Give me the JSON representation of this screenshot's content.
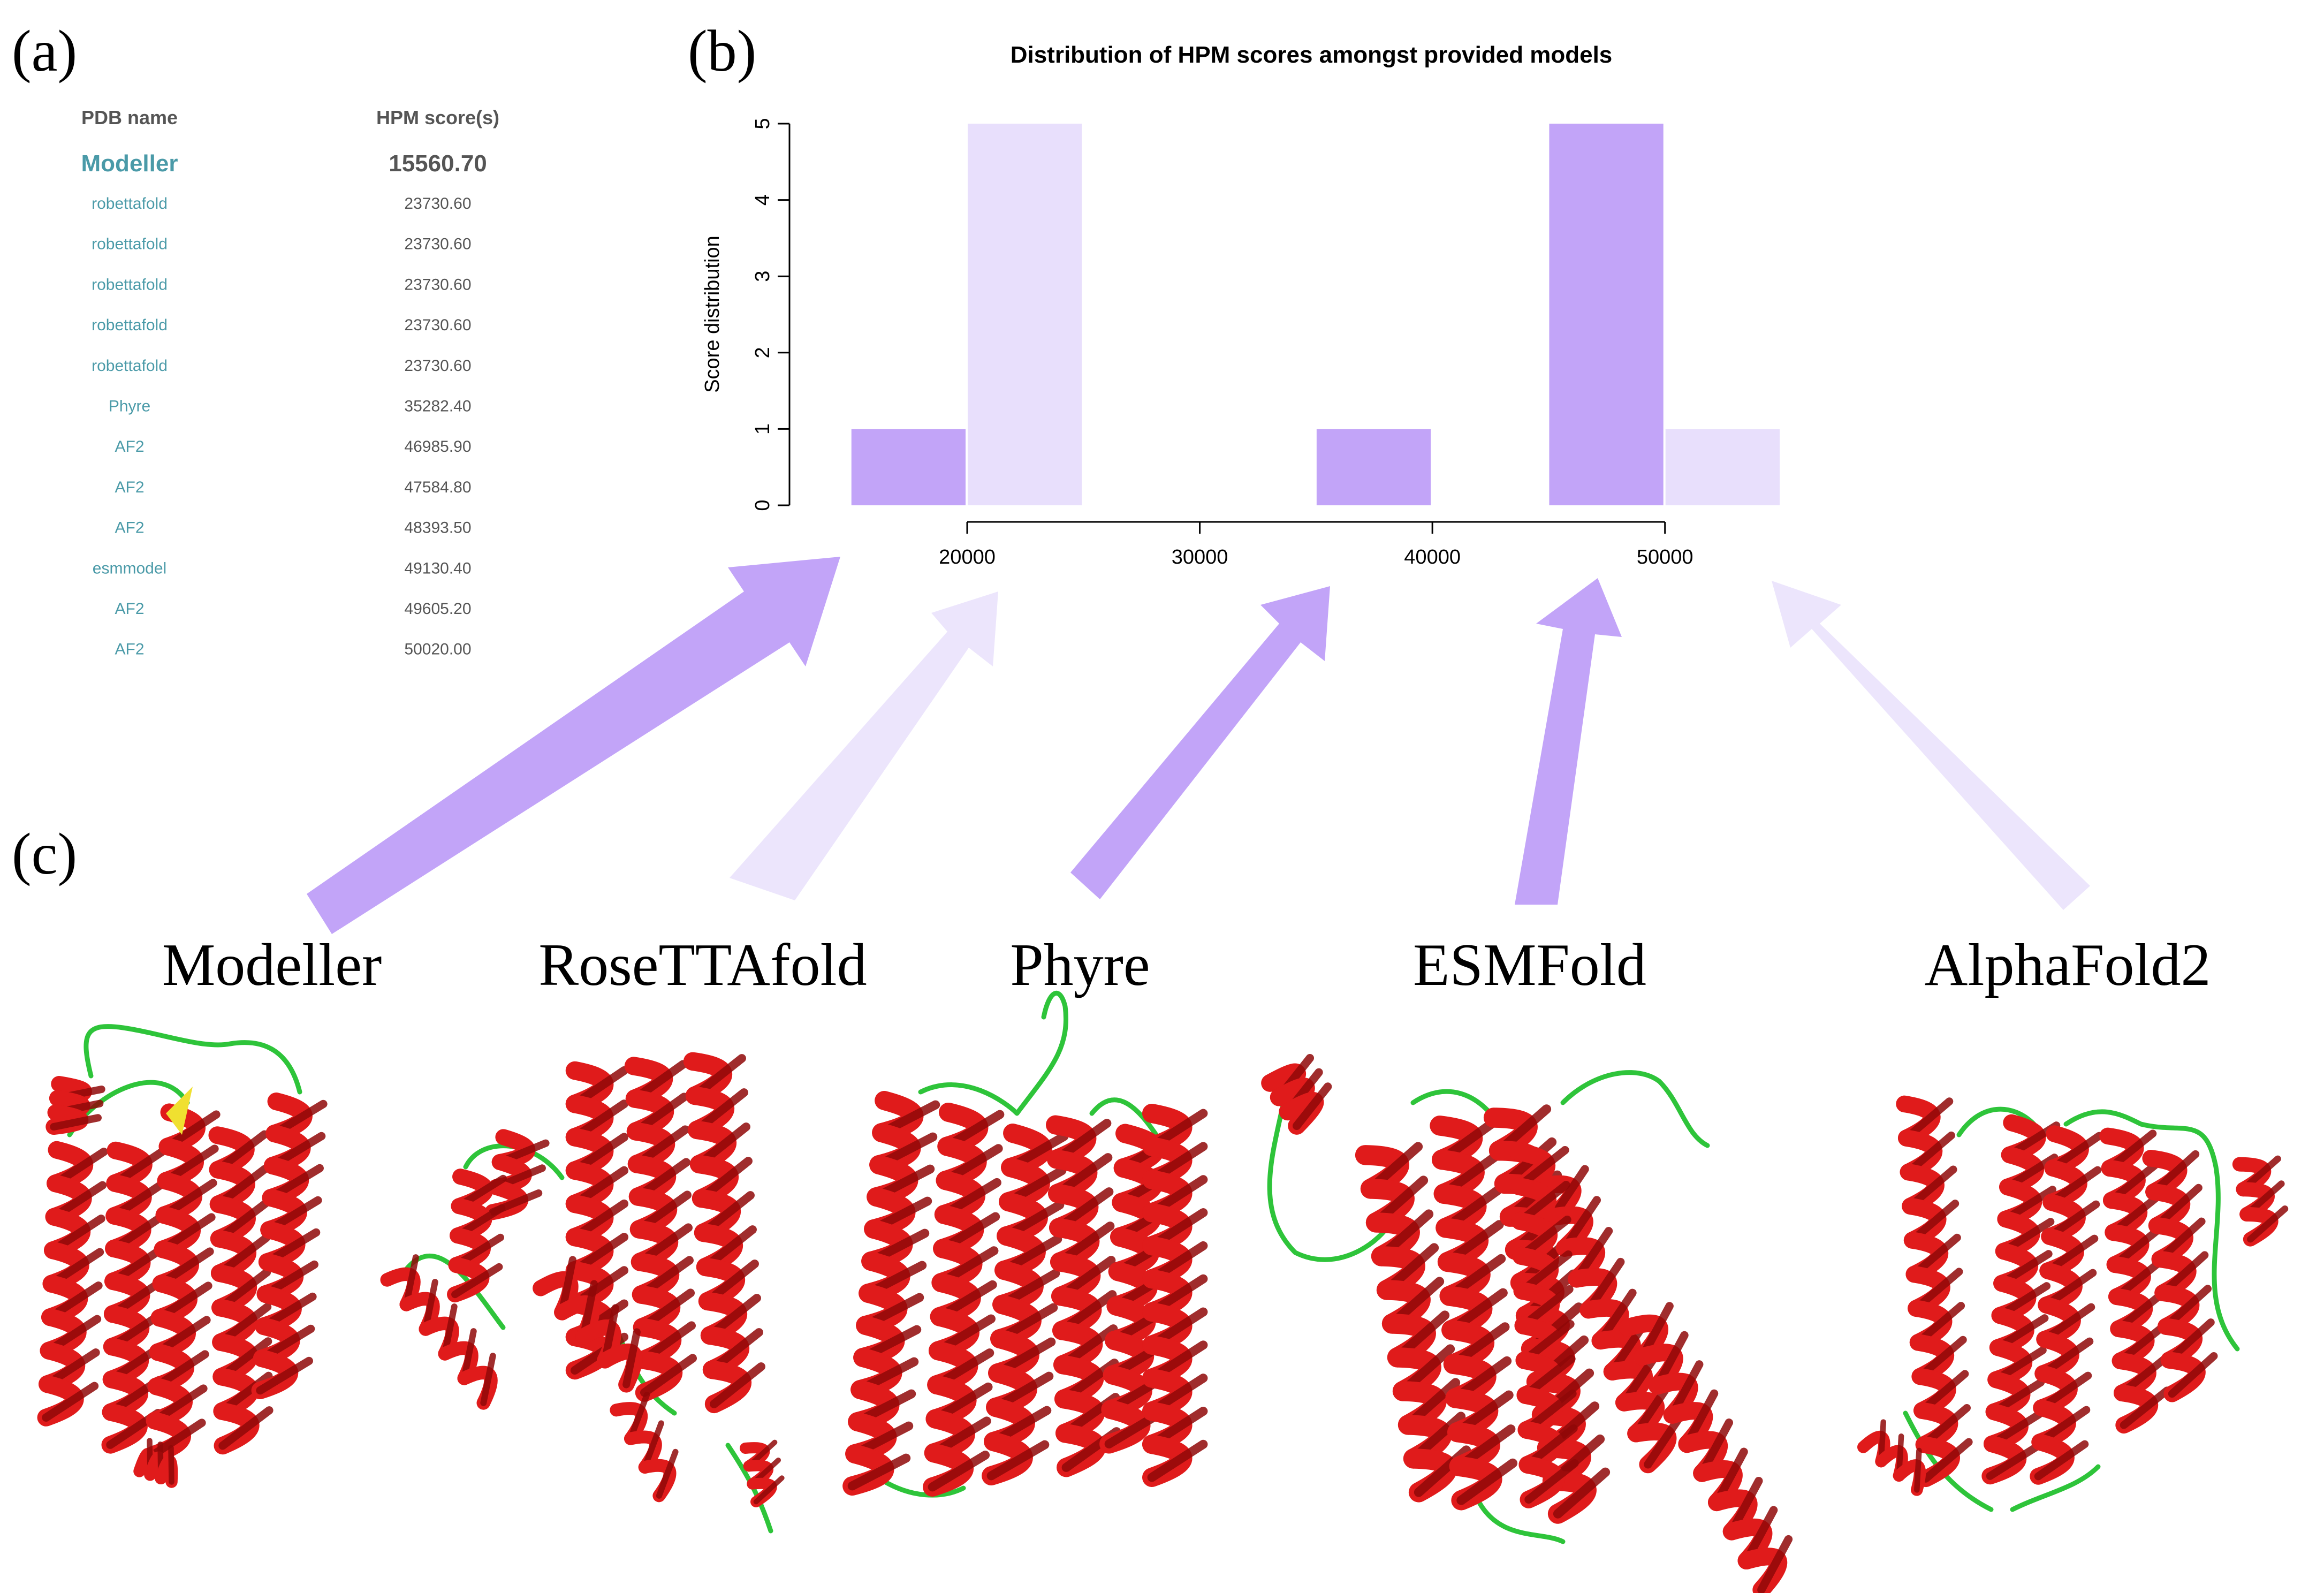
{
  "panels": {
    "a": "(a)",
    "b": "(b)",
    "c": "(c)"
  },
  "table": {
    "headers": [
      "PDB name",
      "HPM score(s)"
    ],
    "rows": [
      {
        "name": "Modeller",
        "score": "15560.70",
        "highlight": true
      },
      {
        "name": "robettafold",
        "score": "23730.60"
      },
      {
        "name": "robettafold",
        "score": "23730.60"
      },
      {
        "name": "robettafold",
        "score": "23730.60"
      },
      {
        "name": "robettafold",
        "score": "23730.60"
      },
      {
        "name": "robettafold",
        "score": "23730.60"
      },
      {
        "name": "Phyre",
        "score": "35282.40"
      },
      {
        "name": "AF2",
        "score": "46985.90"
      },
      {
        "name": "AF2",
        "score": "47584.80"
      },
      {
        "name": "AF2",
        "score": "48393.50"
      },
      {
        "name": "esmmodel",
        "score": "49130.40"
      },
      {
        "name": "AF2",
        "score": "49605.20"
      },
      {
        "name": "AF2",
        "score": "50020.00"
      }
    ]
  },
  "chart_data": {
    "type": "bar",
    "title": "Distribution of HPM scores amongst provided models",
    "xlabel": "",
    "ylabel": "Score distribution",
    "xlim": [
      14500,
      55000
    ],
    "ylim": [
      0,
      5
    ],
    "x_ticks": [
      20000,
      30000,
      40000,
      50000
    ],
    "x_tick_labels": [
      "20000",
      "30000",
      "40000",
      "50000"
    ],
    "y_ticks": [
      0,
      1,
      2,
      3,
      4,
      5
    ],
    "y_tick_labels": [
      "0",
      "1",
      "2",
      "3",
      "4",
      "5"
    ],
    "bars": [
      {
        "x0": 15000,
        "x1": 20000,
        "value": 1,
        "color": "#c2a4f8"
      },
      {
        "x0": 20000,
        "x1": 25000,
        "value": 5,
        "color": "#e8dffc"
      },
      {
        "x0": 35000,
        "x1": 40000,
        "value": 1,
        "color": "#c2a4f8"
      },
      {
        "x0": 45000,
        "x1": 50000,
        "value": 5,
        "color": "#c2a4f8"
      },
      {
        "x0": 50000,
        "x1": 55000,
        "value": 1,
        "color": "#e8dffc"
      }
    ],
    "grid": false
  },
  "models": [
    "Modeller",
    "RoseTTAfold",
    "Phyre",
    "ESMFold",
    "AlphaFold2"
  ],
  "colors": {
    "bar_dark": "#c2a4f8",
    "bar_light": "#e8dffc",
    "helix": "#e01b1b",
    "loop": "#2ec43a",
    "strand": "#f0e030"
  }
}
